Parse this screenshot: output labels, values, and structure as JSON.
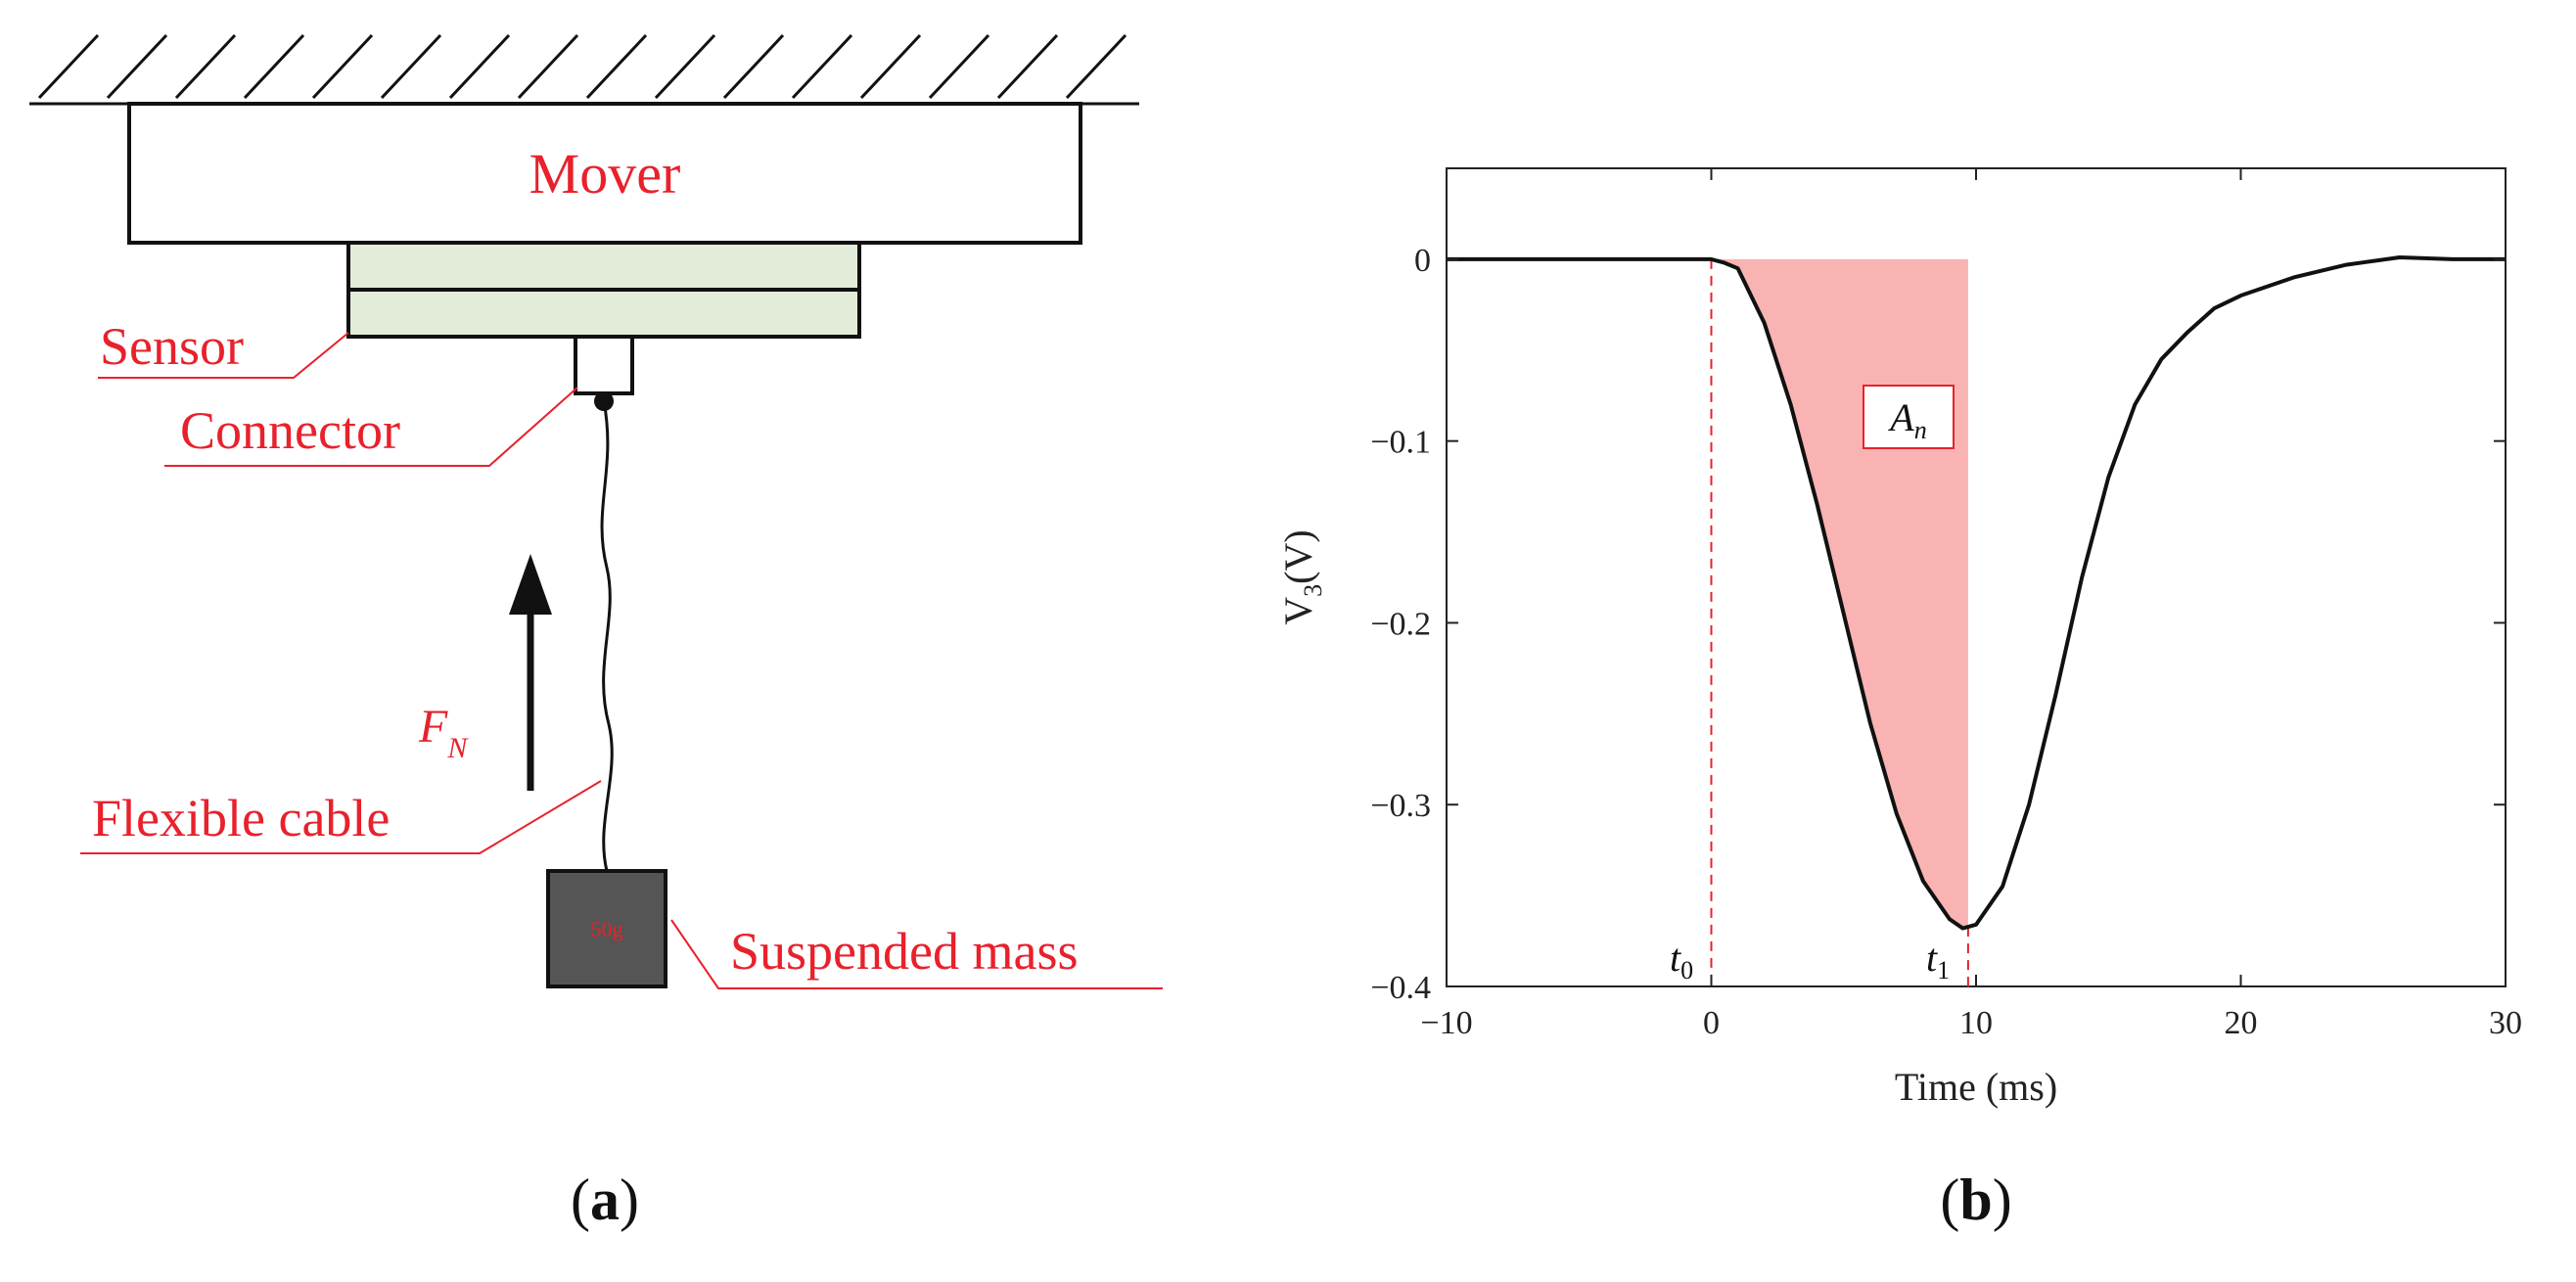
{
  "panel_a": {
    "mover_label": "Mover",
    "sensor_label": "Sensor",
    "connector_label": "Connector",
    "force_label_main": "F",
    "force_label_sub": "N",
    "cable_label": "Flexible cable",
    "mass_label": "Suspended mass",
    "mass_value": "50g",
    "caption_letter": "a"
  },
  "panel_b": {
    "caption_letter": "b",
    "area_label_main": "A",
    "area_label_sub": "n",
    "t0_main": "t",
    "t0_sub": "0",
    "t1_main": "t",
    "t1_sub": "1"
  },
  "colors": {
    "accent_red": "#e8212c",
    "sensor_fill": "#e2ecd8",
    "mass_fill": "#555555",
    "area_fill": "#f9b3b3"
  },
  "chart_data": {
    "type": "line",
    "title": "",
    "xlabel": "Time (ms)",
    "ylabel_main": "V",
    "ylabel_sub": "3",
    "ylabel_unit": "(V)",
    "xlim": [
      -10,
      30
    ],
    "ylim": [
      -0.4,
      0.05
    ],
    "x_ticks": [
      -10,
      0,
      10,
      20,
      30
    ],
    "x_tick_labels": [
      "−10",
      "0",
      "10",
      "20",
      "30"
    ],
    "y_ticks": [
      0,
      -0.1,
      -0.2,
      -0.3,
      -0.4
    ],
    "y_tick_labels": [
      "0",
      "−0.1",
      "−0.2",
      "−0.3",
      "−0.4"
    ],
    "t0": 0,
    "t1": 9.7,
    "series": [
      {
        "name": "V3",
        "x": [
          -10,
          -8,
          -6,
          -4,
          -2,
          -1,
          0,
          0.5,
          1,
          2,
          3,
          4,
          5,
          6,
          7,
          8,
          9,
          9.5,
          10,
          11,
          12,
          13,
          14,
          15,
          16,
          17,
          18,
          19,
          20,
          22,
          24,
          26,
          28,
          30
        ],
        "y": [
          0,
          0,
          0,
          0,
          0,
          0,
          0,
          -0.002,
          -0.005,
          -0.035,
          -0.08,
          -0.135,
          -0.195,
          -0.255,
          -0.305,
          -0.342,
          -0.363,
          -0.368,
          -0.366,
          -0.345,
          -0.3,
          -0.24,
          -0.175,
          -0.12,
          -0.08,
          -0.055,
          -0.04,
          -0.027,
          -0.02,
          -0.01,
          -0.003,
          0.001,
          0,
          0
        ]
      }
    ]
  }
}
